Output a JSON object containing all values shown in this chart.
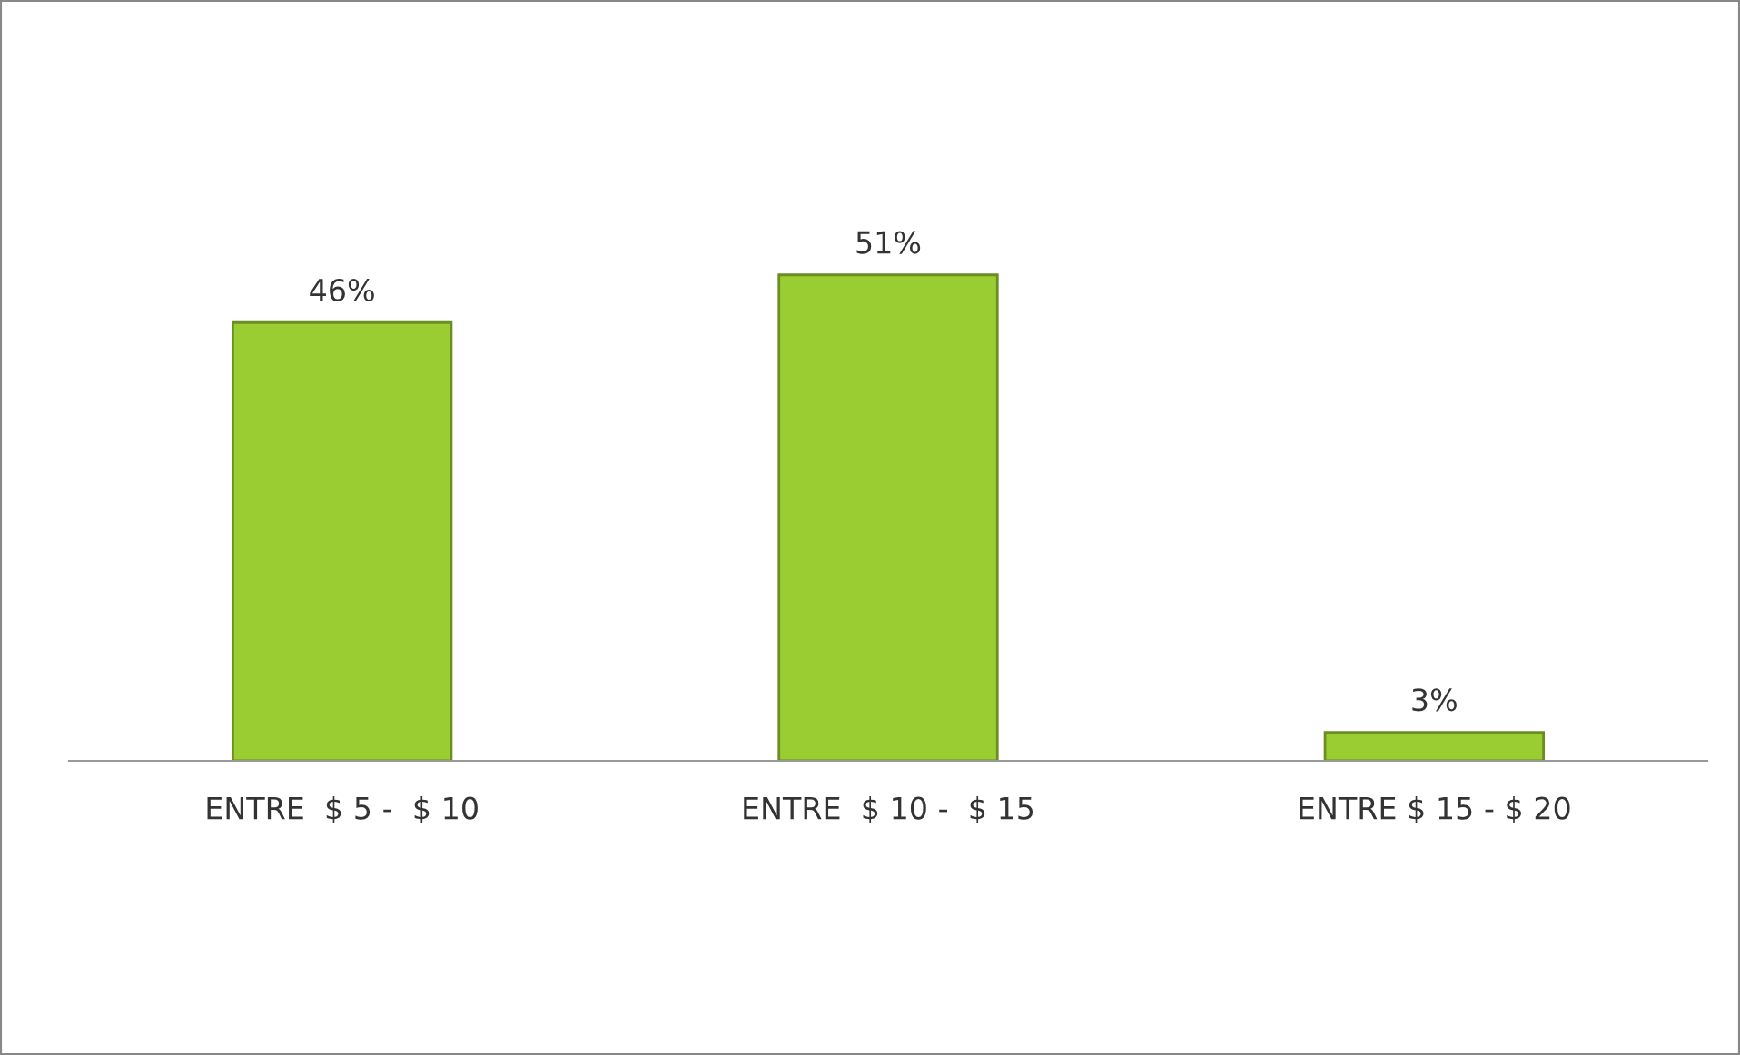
{
  "chart_data": {
    "type": "bar",
    "categories": [
      "ENTRE  $ 5 -  $ 10",
      "ENTRE  $ 10 -  $ 15",
      "ENTRE $ 15 - $ 20"
    ],
    "values": [
      46,
      51,
      3
    ],
    "value_labels": [
      "46%",
      "51%",
      "3%"
    ],
    "color": "#9acd32",
    "tick_labels": "x",
    "grid": false,
    "legend": false
  }
}
